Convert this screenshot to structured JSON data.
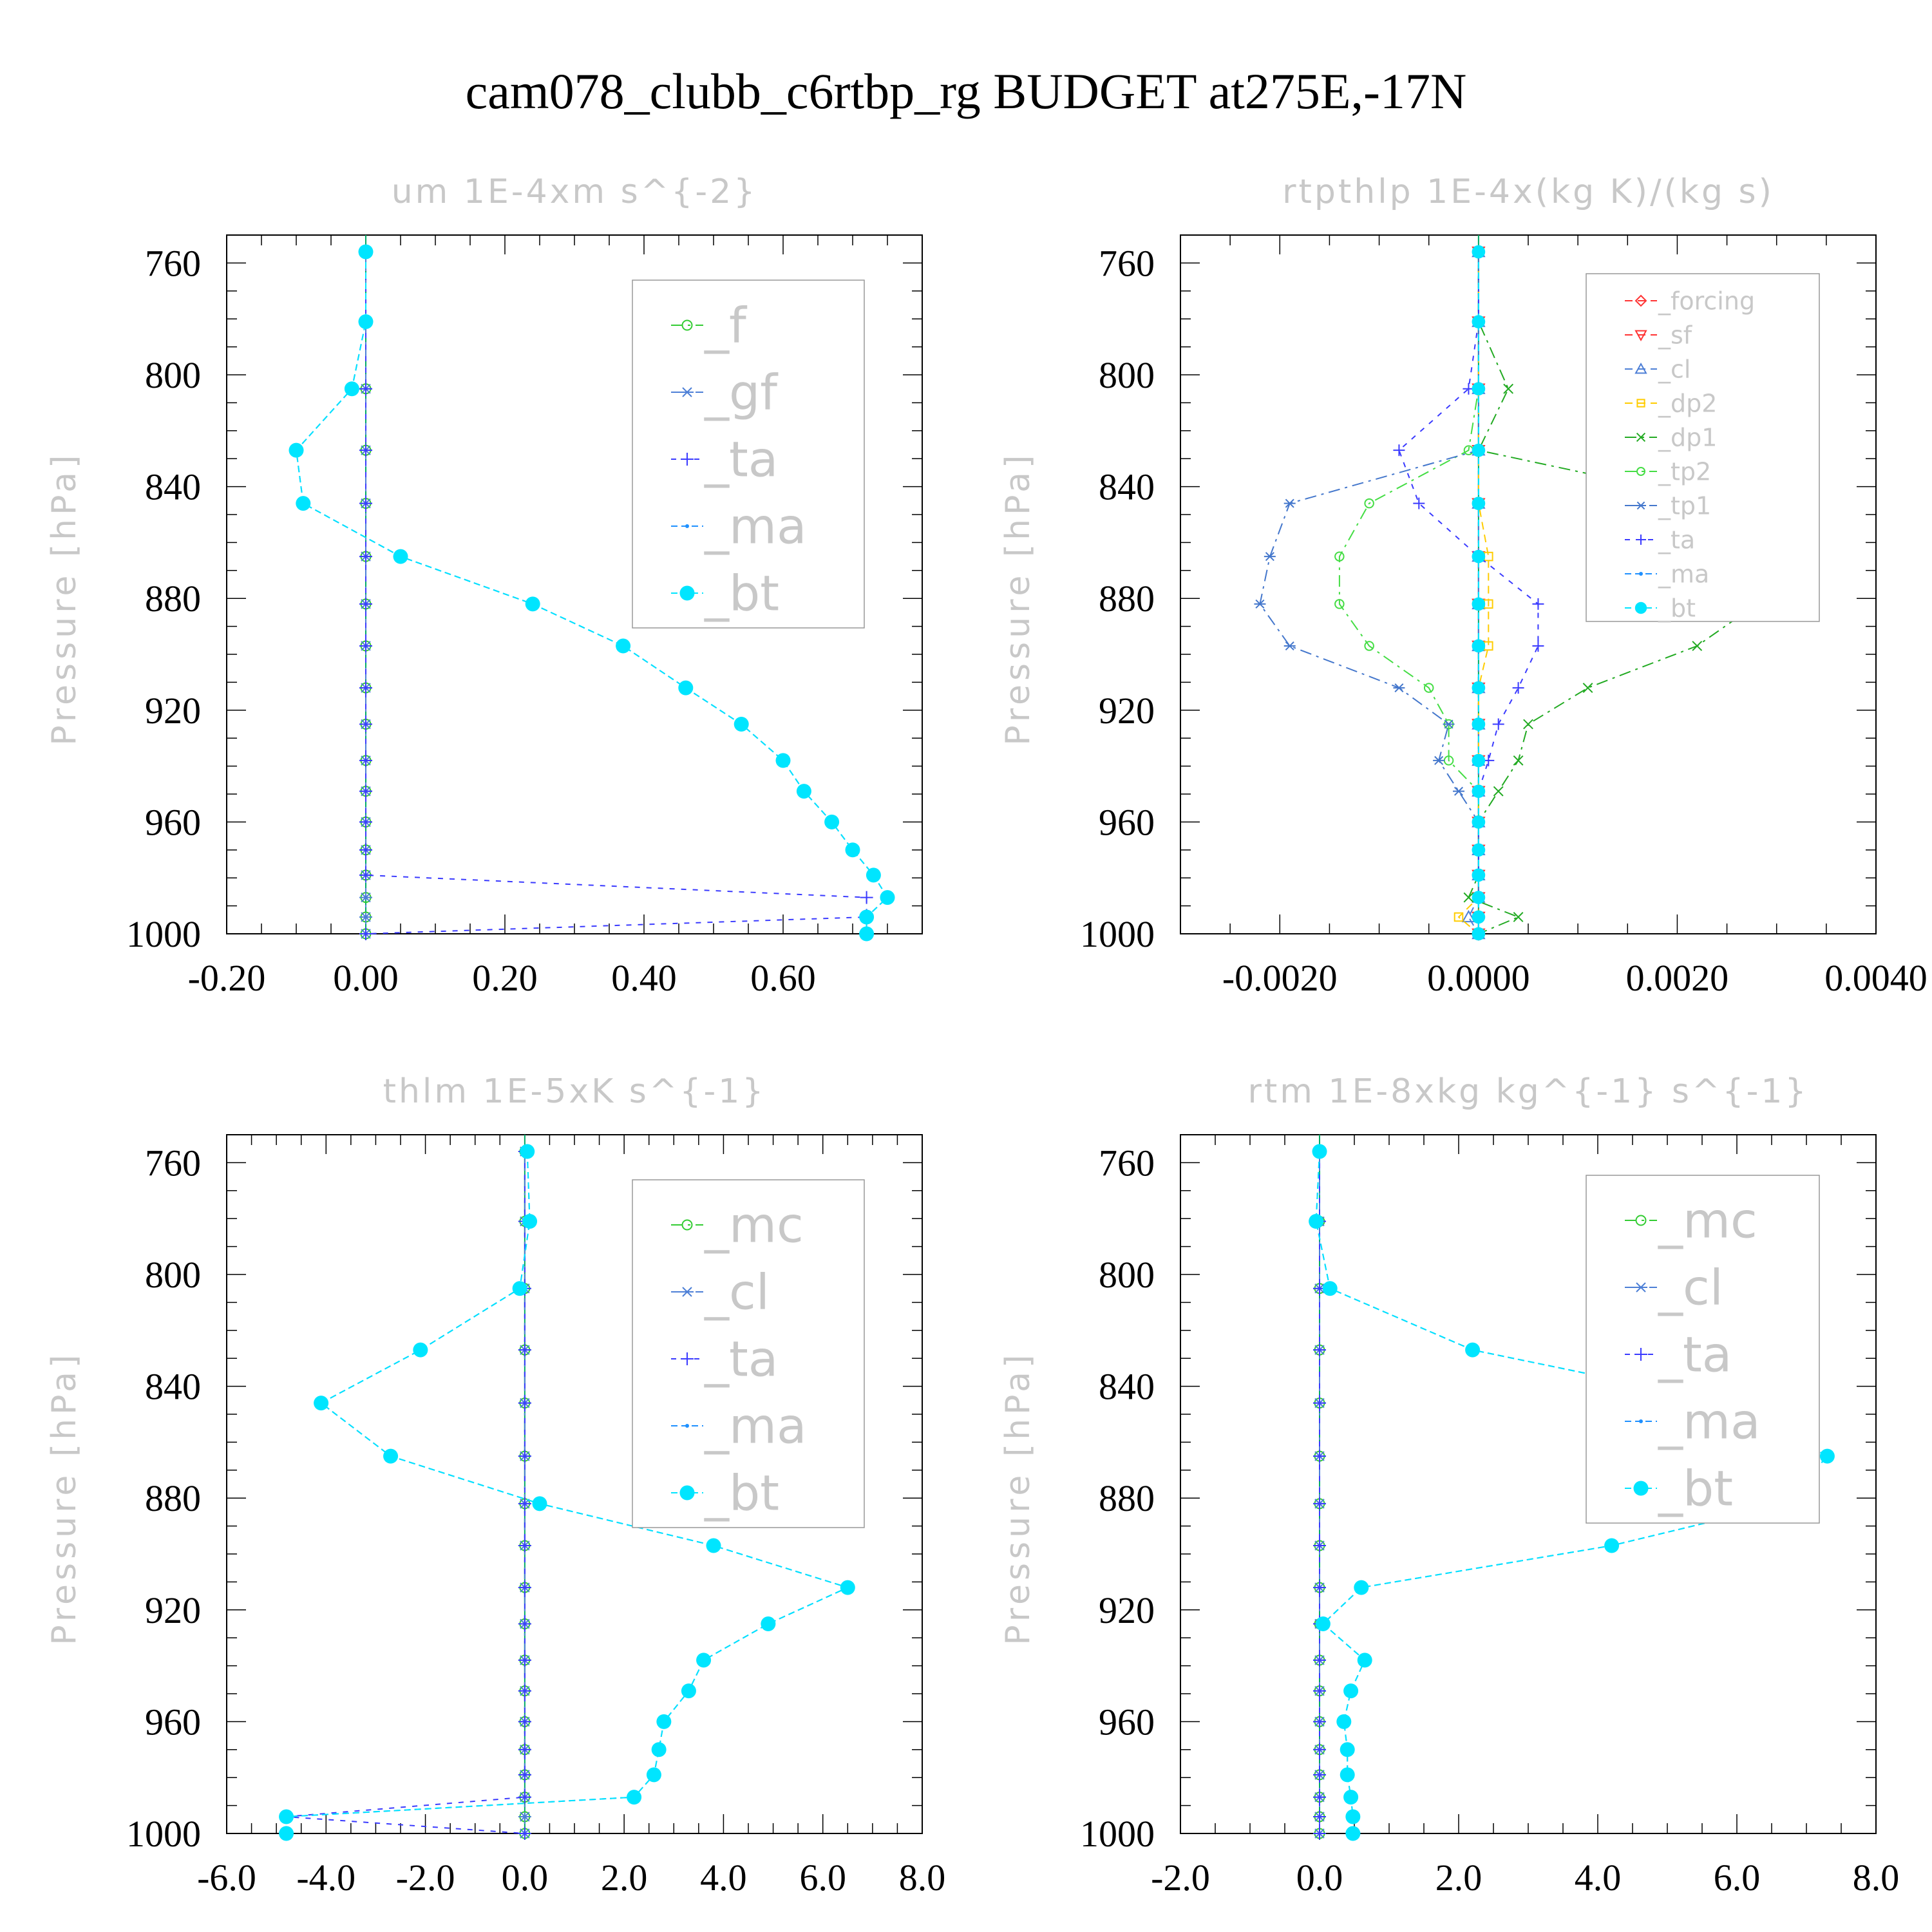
{
  "figure_title": "cam078_clubb_c6rtbp_rg  BUDGET at275E,-17N",
  "colors": {
    "frame": "#000000",
    "text_faint": "#c8c8c8",
    "bt": "#00e5ff",
    "ma": "#1e90ff",
    "ta": "#3a3aff",
    "mc": "#33cc33",
    "cl": "#4d7fd6",
    "f": "#33cc33",
    "gf": "#4d7fd6",
    "forcing": "#ff3333",
    "sf": "#ff3333",
    "dp2": "#ffcc00",
    "dp1": "#22aa22",
    "tp2": "#44dd44",
    "tp1": "#4477cc"
  },
  "chart_data": [
    {
      "type": "line",
      "title": "um  1E-4xm s^{-2}",
      "ylabel": "Pressure [hPa]",
      "xlabel": "",
      "xlim": [
        -0.2,
        0.8
      ],
      "ylim": [
        1000,
        750
      ],
      "xticks": [
        "-0.20",
        "0.00",
        "0.20",
        "0.40",
        "0.60"
      ],
      "yticks": [
        "760",
        "800",
        "840",
        "880",
        "920",
        "960",
        "1000"
      ],
      "y": [
        756,
        781,
        805,
        827,
        846,
        865,
        882,
        897,
        912,
        925,
        938,
        949,
        960,
        970,
        979,
        987,
        994,
        1000
      ],
      "series": [
        {
          "name": "_f",
          "style": "circle",
          "values": [
            0,
            0,
            0,
            0,
            0,
            0,
            0,
            0,
            0,
            0,
            0,
            0,
            0,
            0,
            0,
            0,
            0,
            0
          ]
        },
        {
          "name": "_gf",
          "style": "star",
          "values": [
            0,
            0,
            0,
            0,
            0,
            0,
            0,
            0,
            0,
            0,
            0,
            0,
            0,
            0,
            0,
            0,
            0,
            0
          ]
        },
        {
          "name": "_ta",
          "style": "plus",
          "values": [
            0,
            0,
            0,
            0,
            0,
            0,
            0,
            0,
            0,
            0,
            0,
            0,
            0,
            0,
            0,
            0.72,
            0.72,
            0
          ]
        },
        {
          "name": "_ma",
          "style": "dot",
          "values": [
            0,
            0,
            -0.02,
            -0.1,
            -0.09,
            0.05,
            0.24,
            0.37,
            0.46,
            0.54,
            0.6,
            0.63,
            0.67,
            0.7,
            0.73,
            0.75,
            0.72,
            0.72
          ]
        },
        {
          "name": "_bt",
          "style": "bigdot",
          "values": [
            0,
            0,
            -0.02,
            -0.1,
            -0.09,
            0.05,
            0.24,
            0.37,
            0.46,
            0.54,
            0.6,
            0.63,
            0.67,
            0.7,
            0.73,
            0.75,
            0.72,
            0.72
          ]
        }
      ],
      "legend": "inside-right"
    },
    {
      "type": "line",
      "title": "rtpthlp  1E-4x(kg K)/(kg s)",
      "ylabel": "Pressure [hPa]",
      "xlabel": "",
      "xlim": [
        -0.003,
        0.004
      ],
      "ylim": [
        1000,
        750
      ],
      "xticks": [
        "-0.0020",
        "0.0000",
        "0.0020",
        "0.0040"
      ],
      "yticks": [
        "760",
        "800",
        "840",
        "880",
        "920",
        "960",
        "1000"
      ],
      "y": [
        756,
        781,
        805,
        827,
        846,
        865,
        882,
        897,
        912,
        925,
        938,
        949,
        960,
        970,
        979,
        987,
        994,
        1000
      ],
      "series": [
        {
          "name": "_forcing",
          "style": "diamond",
          "values": [
            0,
            0,
            0,
            0,
            0,
            0,
            0,
            0,
            0,
            0,
            0,
            0,
            0,
            0,
            0,
            0,
            0,
            0
          ]
        },
        {
          "name": "_sf",
          "style": "triangle-down",
          "values": [
            0,
            0,
            0,
            0,
            0,
            0,
            0,
            0,
            0,
            0,
            0,
            0,
            0,
            0,
            0,
            0,
            0,
            0
          ]
        },
        {
          "name": "_cl",
          "style": "triangle",
          "values": [
            0,
            0,
            0,
            0,
            0,
            0,
            0,
            0,
            0,
            0,
            0,
            0,
            0,
            0,
            0,
            0,
            -0.0001,
            0
          ]
        },
        {
          "name": "_dp2",
          "style": "square",
          "values": [
            0,
            0,
            0,
            0,
            0,
            0.0001,
            0.0001,
            0.0001,
            0,
            0,
            0,
            0,
            0,
            0,
            0,
            0,
            -0.0002,
            0
          ]
        },
        {
          "name": "_dp1",
          "style": "cross",
          "values": [
            0,
            0,
            0.0003,
            0,
            0.0025,
            0.003,
            0.0028,
            0.0022,
            0.0011,
            0.0005,
            0.0004,
            0.0002,
            0,
            0,
            0,
            -0.0001,
            0.0004,
            0
          ]
        },
        {
          "name": "_tp2",
          "style": "circle",
          "values": [
            0,
            0,
            0,
            -0.0001,
            -0.0011,
            -0.0014,
            -0.0014,
            -0.0011,
            -0.0005,
            -0.0003,
            -0.0003,
            0,
            0,
            0,
            0,
            0,
            0,
            0
          ]
        },
        {
          "name": "_tp1",
          "style": "star",
          "values": [
            0,
            0,
            0,
            0,
            -0.0019,
            -0.0021,
            -0.0022,
            -0.0019,
            -0.0008,
            -0.0003,
            -0.0004,
            -0.0002,
            0,
            0,
            0,
            0,
            0,
            0
          ]
        },
        {
          "name": "_ta",
          "style": "plus",
          "values": [
            0,
            0,
            -0.0001,
            -0.0008,
            -0.0006,
            0,
            0.0006,
            0.0006,
            0.0004,
            0.0002,
            0.0001,
            0,
            0,
            0,
            0,
            0,
            0,
            0
          ]
        },
        {
          "name": "_ma",
          "style": "dot",
          "values": [
            0,
            0,
            0,
            0,
            0,
            0,
            0,
            0,
            0,
            0,
            0,
            0,
            0,
            0,
            0,
            0,
            0,
            0
          ]
        },
        {
          "name": "_bt",
          "style": "bigdot",
          "values": [
            0,
            0,
            0,
            0,
            0,
            0,
            0,
            0,
            0,
            0,
            0,
            0,
            0,
            0,
            0,
            0,
            0,
            0
          ]
        }
      ],
      "legend": "inside-right"
    },
    {
      "type": "line",
      "title": "thlm  1E-5xK s^{-1}",
      "ylabel": "Pressure [hPa]",
      "xlabel": "",
      "xlim": [
        -6.0,
        8.0
      ],
      "ylim": [
        1000,
        750
      ],
      "xticks": [
        "-6.0",
        "-4.0",
        "-2.0",
        "0.0",
        "2.0",
        "4.0",
        "6.0",
        "8.0"
      ],
      "yticks": [
        "760",
        "800",
        "840",
        "880",
        "920",
        "960",
        "1000"
      ],
      "y": [
        756,
        781,
        805,
        827,
        846,
        865,
        882,
        897,
        912,
        925,
        938,
        949,
        960,
        970,
        979,
        987,
        994,
        1000
      ],
      "series": [
        {
          "name": "_mc",
          "style": "circle",
          "values": [
            0,
            0,
            0,
            0,
            0,
            0,
            0,
            0,
            0,
            0,
            0,
            0,
            0,
            0,
            0,
            0,
            0,
            0
          ]
        },
        {
          "name": "_cl",
          "style": "star",
          "values": [
            0,
            0,
            0,
            0,
            0,
            0,
            0,
            0,
            0,
            0,
            0,
            0,
            0,
            0,
            0,
            0,
            0,
            0
          ]
        },
        {
          "name": "_ta",
          "style": "plus",
          "values": [
            0,
            0,
            0,
            0,
            0,
            0,
            0,
            0,
            0,
            0,
            0,
            0,
            0,
            0,
            0,
            0,
            -4.8,
            0
          ]
        },
        {
          "name": "_ma",
          "style": "dot",
          "values": [
            0.05,
            0.1,
            -0.1,
            -2.1,
            -4.1,
            -2.7,
            0.3,
            3.8,
            6.5,
            4.9,
            3.6,
            3.3,
            2.8,
            2.7,
            2.6,
            2.2,
            -4.8,
            -4.8
          ]
        },
        {
          "name": "_bt",
          "style": "bigdot",
          "values": [
            0.05,
            0.1,
            -0.1,
            -2.1,
            -4.1,
            -2.7,
            0.3,
            3.8,
            6.5,
            4.9,
            3.6,
            3.3,
            2.8,
            2.7,
            2.6,
            2.2,
            -4.8,
            -4.8
          ]
        }
      ],
      "legend": "inside-right"
    },
    {
      "type": "line",
      "title": "rtm  1E-8xkg kg^{-1} s^{-1}",
      "ylabel": "Pressure [hPa]",
      "xlabel": "",
      "xlim": [
        -2.0,
        8.0
      ],
      "ylim": [
        1000,
        750
      ],
      "xticks": [
        "-2.0",
        "0.0",
        "2.0",
        "4.0",
        "6.0",
        "8.0"
      ],
      "yticks": [
        "760",
        "800",
        "840",
        "880",
        "920",
        "960",
        "1000"
      ],
      "y": [
        756,
        781,
        805,
        827,
        846,
        865,
        882,
        897,
        912,
        925,
        938,
        949,
        960,
        970,
        979,
        987,
        994,
        1000
      ],
      "series": [
        {
          "name": "_mc",
          "style": "circle",
          "values": [
            0,
            0,
            0,
            0,
            0,
            0,
            0,
            0,
            0,
            0,
            0,
            0,
            0,
            0,
            0,
            0,
            0,
            0
          ]
        },
        {
          "name": "_cl",
          "style": "star",
          "values": [
            0,
            0,
            0,
            0,
            0,
            0,
            0,
            0,
            0,
            0,
            0,
            0,
            0,
            0,
            0,
            0,
            0,
            0
          ]
        },
        {
          "name": "_ta",
          "style": "plus",
          "values": [
            0,
            0,
            0,
            0,
            0,
            0,
            0,
            0,
            0,
            0,
            0,
            0,
            0,
            0,
            0,
            0,
            0,
            0
          ]
        },
        {
          "name": "_ma",
          "style": "dot",
          "values": [
            0,
            -0.05,
            0.15,
            2.2,
            5.9,
            7.3,
            6.7,
            4.2,
            0.6,
            0.05,
            0.65,
            0.45,
            0.35,
            0.4,
            0.4,
            0.45,
            0.48,
            0.48
          ]
        },
        {
          "name": "_bt",
          "style": "bigdot",
          "values": [
            0,
            -0.05,
            0.15,
            2.2,
            5.9,
            7.3,
            6.7,
            4.2,
            0.6,
            0.05,
            0.65,
            0.45,
            0.35,
            0.4,
            0.4,
            0.45,
            0.48,
            0.48
          ]
        }
      ],
      "legend": "inside-right"
    }
  ]
}
